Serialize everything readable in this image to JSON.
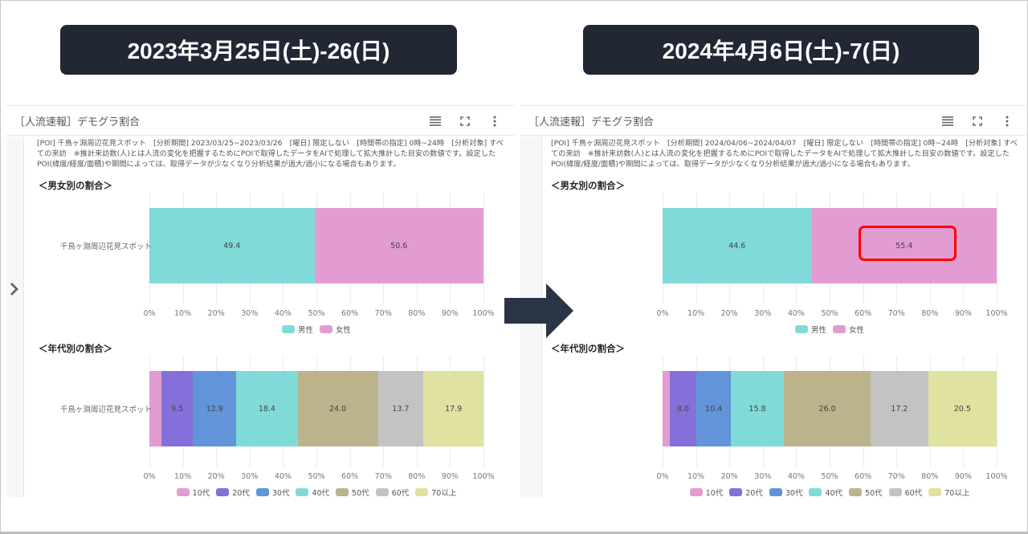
{
  "header_labels": {
    "left": "2023年3月25日(土)-26(日)",
    "right": "2024年4月6日(土)-7(日)"
  },
  "panels": [
    {
      "title": "［人流速報］デモグラ割合",
      "tools": [
        "menu-icon",
        "fullscreen-icon",
        "more-vertical-icon"
      ],
      "note": "[POI] 千鳥ヶ淵周辺花見スポット　[分析期間] 2023/03/25~2023/03/26　[曜日] 限定しない　[時間帯の指定] 0時~24時　[分析対象] すべての来訪　※推計来訪数(人)とは人流の変化を把握するためにPOIで取得したデータをAIで処理して拡大推計した目安の数値です。設定したPOI(緯度/経度/面積)や期間によっては、取得データが少なくなり分析結果が過大/過小になる場合もあります。",
      "gender_title": "＜男女別の割合＞",
      "age_title": "＜年代別の割合＞"
    },
    {
      "title": "［人流速報］デモグラ割合",
      "tools": [
        "menu-icon",
        "fullscreen-icon",
        "more-vertical-icon"
      ],
      "note": "[POI] 千鳥ヶ淵周辺花見スポット　[分析期間] 2024/04/06~2024/04/07　[曜日] 限定しない　[時間帯の指定] 0時~24時　[分析対象] すべての来訪　※推計来訪数(人)とは人流の変化を把握するためにPOIで取得したデータをAIで処理して拡大推計した目安の数値です。設定したPOI(緯度/経度/面積)や期間によっては、取得データが少なくなり分析結果が過大/過小になる場合もあります。",
      "gender_title": "＜男女別の割合＞",
      "age_title": "＜年代別の割合＞"
    }
  ],
  "colors": {
    "male": "#80dbd8",
    "female": "#e29cd2",
    "age_10": "#e29cd2",
    "age_20": "#8570db",
    "age_30": "#6294d9",
    "age_40": "#80dbd8",
    "age_50": "#bcb38c",
    "age_60": "#c3c3c3",
    "age_70": "#dfe2a0",
    "label_bg": "#212733",
    "arrow": "#2b3445",
    "highlight": "#ff0000"
  },
  "chart_data": [
    {
      "type": "bar",
      "orientation": "horizontal",
      "stacked": "percent",
      "title": "＜男女別の割合＞",
      "period": "2023年3月25日(土)-26(日)",
      "categories": [
        "千鳥ヶ淵周辺花見スポット"
      ],
      "series": [
        {
          "name": "男性",
          "values": [
            49.4
          ]
        },
        {
          "name": "女性",
          "values": [
            50.6
          ]
        }
      ],
      "xticks": [
        "0%",
        "10%",
        "20%",
        "30%",
        "40%",
        "50%",
        "60%",
        "70%",
        "80%",
        "90%",
        "100%"
      ],
      "xlim": [
        0,
        100
      ],
      "grid": true,
      "legend_position": "bottom"
    },
    {
      "type": "bar",
      "orientation": "horizontal",
      "stacked": "percent",
      "title": "＜年代別の割合＞",
      "period": "2023年3月25日(土)-26(日)",
      "categories": [
        "千鳥ヶ淵周辺花見スポット"
      ],
      "series": [
        {
          "name": "10代",
          "values": [
            3.6
          ],
          "label_shown": false
        },
        {
          "name": "20代",
          "values": [
            9.5
          ]
        },
        {
          "name": "30代",
          "values": [
            12.9
          ]
        },
        {
          "name": "40代",
          "values": [
            18.4
          ]
        },
        {
          "name": "50代",
          "values": [
            24.0
          ]
        },
        {
          "name": "60代",
          "values": [
            13.7
          ]
        },
        {
          "name": "70以上",
          "values": [
            17.9
          ]
        }
      ],
      "xticks": [
        "0%",
        "10%",
        "20%",
        "30%",
        "40%",
        "50%",
        "60%",
        "70%",
        "80%",
        "90%",
        "100%"
      ],
      "xlim": [
        0,
        100
      ],
      "grid": true,
      "legend_position": "bottom"
    },
    {
      "type": "bar",
      "orientation": "horizontal",
      "stacked": "percent",
      "title": "＜男女別の割合＞",
      "period": "2024年4月6日(土)-7(日)",
      "categories": [
        "千鳥ヶ淵周辺花見スポット"
      ],
      "series": [
        {
          "name": "男性",
          "values": [
            44.6
          ]
        },
        {
          "name": "女性",
          "values": [
            55.4
          ]
        }
      ],
      "annotations": [
        "55.4 highlighted with red box"
      ],
      "xticks": [
        "0%",
        "10%",
        "20%",
        "30%",
        "40%",
        "50%",
        "60%",
        "70%",
        "80%",
        "90%",
        "100%"
      ],
      "xlim": [
        0,
        100
      ],
      "grid": true,
      "legend_position": "bottom"
    },
    {
      "type": "bar",
      "orientation": "horizontal",
      "stacked": "percent",
      "title": "＜年代別の割合＞",
      "period": "2024年4月6日(土)-7(日)",
      "categories": [
        "千鳥ヶ淵周辺花見スポット"
      ],
      "series": [
        {
          "name": "10代",
          "values": [
            2.1
          ],
          "label_shown": false
        },
        {
          "name": "20代",
          "values": [
            8.0
          ]
        },
        {
          "name": "30代",
          "values": [
            10.4
          ]
        },
        {
          "name": "40代",
          "values": [
            15.8
          ]
        },
        {
          "name": "50代",
          "values": [
            26.0
          ]
        },
        {
          "name": "60代",
          "values": [
            17.2
          ]
        },
        {
          "name": "70以上",
          "values": [
            20.5
          ]
        }
      ],
      "xticks": [
        "0%",
        "10%",
        "20%",
        "30%",
        "40%",
        "50%",
        "60%",
        "70%",
        "80%",
        "90%",
        "100%"
      ],
      "xlim": [
        0,
        100
      ],
      "grid": true,
      "legend_position": "bottom"
    }
  ]
}
